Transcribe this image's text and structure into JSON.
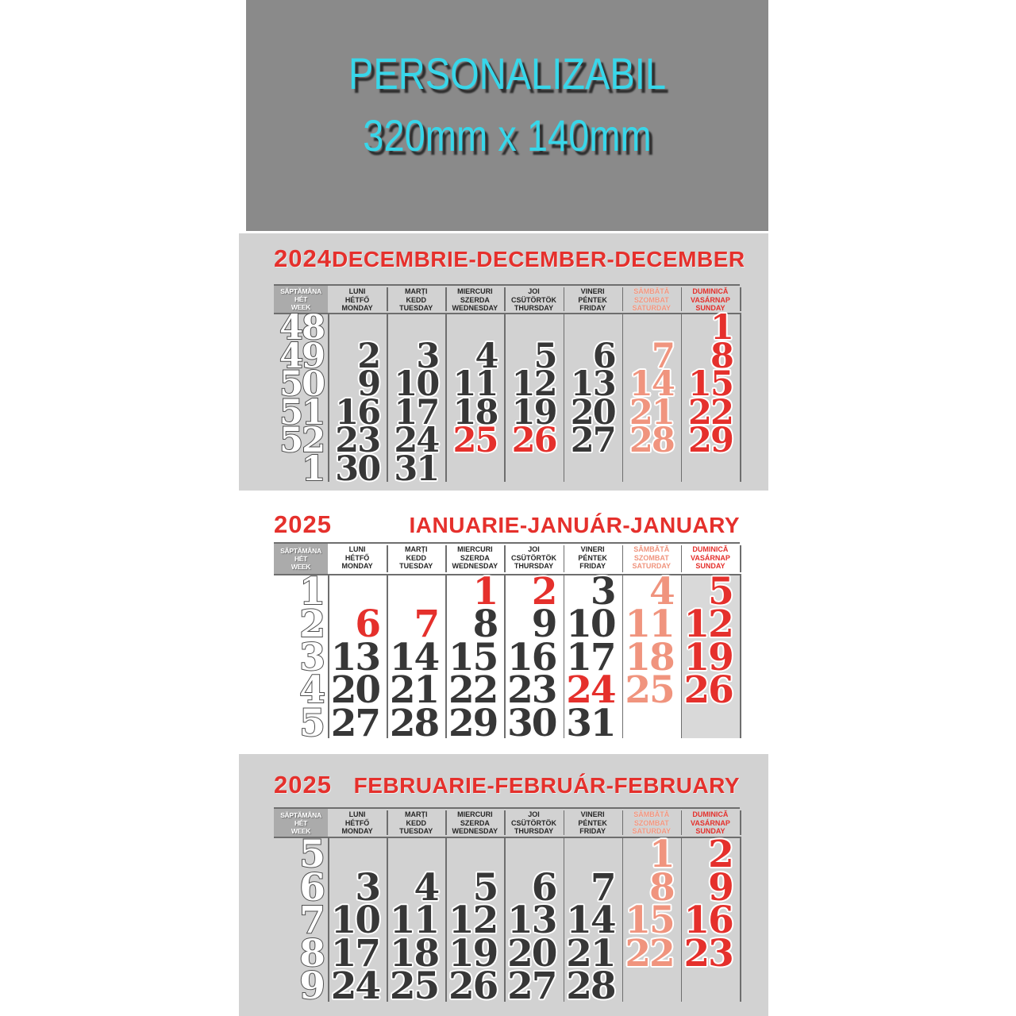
{
  "banner": {
    "title": "PERSONALIZABIL",
    "size": "320mm x 140mm"
  },
  "day_header": {
    "week_lines": [
      "SĂPTĂMÂNA",
      "HÉT",
      "WEEK"
    ],
    "days": [
      {
        "key": "monday",
        "lines": [
          "LUNI",
          "HÉTFŐ",
          "MONDAY"
        ],
        "type": "wd"
      },
      {
        "key": "tuesday",
        "lines": [
          "MARȚI",
          "KEDD",
          "TUESDAY"
        ],
        "type": "wd"
      },
      {
        "key": "wednesday",
        "lines": [
          "MIERCURI",
          "SZERDA",
          "WEDNESDAY"
        ],
        "type": "wd"
      },
      {
        "key": "thursday",
        "lines": [
          "JOI",
          "CSÜTÖRTÖK",
          "THURSDAY"
        ],
        "type": "wd"
      },
      {
        "key": "friday",
        "lines": [
          "VINERI",
          "PÉNTEK",
          "FRIDAY"
        ],
        "type": "wd"
      },
      {
        "key": "saturday",
        "lines": [
          "SÂMBĂTĂ",
          "SZOMBAT",
          "SATURDAY"
        ],
        "type": "sat"
      },
      {
        "key": "sunday",
        "lines": [
          "DUMINICĂ",
          "VASÁRNAP",
          "SUNDAY"
        ],
        "type": "sun"
      }
    ]
  },
  "months": [
    {
      "id": "december-2024",
      "year": "2024",
      "title": "DECEMBRIE-DECEMBER-DECEMBER",
      "sunday_column_shaded": false,
      "weeks": [
        {
          "num": "48",
          "days": [
            null,
            null,
            null,
            null,
            null,
            null,
            {
              "d": "1",
              "t": "sun"
            }
          ]
        },
        {
          "num": "49",
          "days": [
            {
              "d": "2",
              "t": "wd"
            },
            {
              "d": "3",
              "t": "wd"
            },
            {
              "d": "4",
              "t": "wd"
            },
            {
              "d": "5",
              "t": "wd"
            },
            {
              "d": "6",
              "t": "wd"
            },
            {
              "d": "7",
              "t": "sat"
            },
            {
              "d": "8",
              "t": "sun"
            }
          ]
        },
        {
          "num": "50",
          "days": [
            {
              "d": "9",
              "t": "wd"
            },
            {
              "d": "10",
              "t": "wd"
            },
            {
              "d": "11",
              "t": "wd"
            },
            {
              "d": "12",
              "t": "wd"
            },
            {
              "d": "13",
              "t": "wd"
            },
            {
              "d": "14",
              "t": "sat"
            },
            {
              "d": "15",
              "t": "sun"
            }
          ]
        },
        {
          "num": "51",
          "days": [
            {
              "d": "16",
              "t": "wd"
            },
            {
              "d": "17",
              "t": "wd"
            },
            {
              "d": "18",
              "t": "wd"
            },
            {
              "d": "19",
              "t": "wd"
            },
            {
              "d": "20",
              "t": "wd"
            },
            {
              "d": "21",
              "t": "sat"
            },
            {
              "d": "22",
              "t": "sun"
            }
          ]
        },
        {
          "num": "52",
          "days": [
            {
              "d": "23",
              "t": "wd"
            },
            {
              "d": "24",
              "t": "wd"
            },
            {
              "d": "25",
              "t": "hol"
            },
            {
              "d": "26",
              "t": "hol"
            },
            {
              "d": "27",
              "t": "wd"
            },
            {
              "d": "28",
              "t": "sat"
            },
            {
              "d": "29",
              "t": "sun"
            }
          ]
        },
        {
          "num": "1",
          "days": [
            {
              "d": "30",
              "t": "wd"
            },
            {
              "d": "31",
              "t": "wd"
            },
            null,
            null,
            null,
            null,
            null
          ]
        }
      ]
    },
    {
      "id": "january-2025",
      "year": "2025",
      "title": "IANUARIE-JANUÁR-JANUARY",
      "sunday_column_shaded": true,
      "weeks": [
        {
          "num": "1",
          "days": [
            null,
            null,
            {
              "d": "1",
              "t": "hol"
            },
            {
              "d": "2",
              "t": "hol"
            },
            {
              "d": "3",
              "t": "wd"
            },
            {
              "d": "4",
              "t": "sat"
            },
            {
              "d": "5",
              "t": "sun"
            }
          ]
        },
        {
          "num": "2",
          "days": [
            {
              "d": "6",
              "t": "hol"
            },
            {
              "d": "7",
              "t": "hol"
            },
            {
              "d": "8",
              "t": "wd"
            },
            {
              "d": "9",
              "t": "wd"
            },
            {
              "d": "10",
              "t": "wd"
            },
            {
              "d": "11",
              "t": "sat"
            },
            {
              "d": "12",
              "t": "sun"
            }
          ]
        },
        {
          "num": "3",
          "days": [
            {
              "d": "13",
              "t": "wd"
            },
            {
              "d": "14",
              "t": "wd"
            },
            {
              "d": "15",
              "t": "wd"
            },
            {
              "d": "16",
              "t": "wd"
            },
            {
              "d": "17",
              "t": "wd"
            },
            {
              "d": "18",
              "t": "sat"
            },
            {
              "d": "19",
              "t": "sun"
            }
          ]
        },
        {
          "num": "4",
          "days": [
            {
              "d": "20",
              "t": "wd"
            },
            {
              "d": "21",
              "t": "wd"
            },
            {
              "d": "22",
              "t": "wd"
            },
            {
              "d": "23",
              "t": "wd"
            },
            {
              "d": "24",
              "t": "hol"
            },
            {
              "d": "25",
              "t": "sat"
            },
            {
              "d": "26",
              "t": "sun"
            }
          ]
        },
        {
          "num": "5",
          "days": [
            {
              "d": "27",
              "t": "wd"
            },
            {
              "d": "28",
              "t": "wd"
            },
            {
              "d": "29",
              "t": "wd"
            },
            {
              "d": "30",
              "t": "wd"
            },
            {
              "d": "31",
              "t": "wd"
            },
            null,
            null
          ]
        }
      ]
    },
    {
      "id": "february-2025",
      "year": "2025",
      "title": "FEBRUARIE-FEBRUÁR-FEBRUARY",
      "sunday_column_shaded": false,
      "weeks": [
        {
          "num": "5",
          "days": [
            null,
            null,
            null,
            null,
            null,
            {
              "d": "1",
              "t": "sat"
            },
            {
              "d": "2",
              "t": "sun"
            }
          ]
        },
        {
          "num": "6",
          "days": [
            {
              "d": "3",
              "t": "wd"
            },
            {
              "d": "4",
              "t": "wd"
            },
            {
              "d": "5",
              "t": "wd"
            },
            {
              "d": "6",
              "t": "wd"
            },
            {
              "d": "7",
              "t": "wd"
            },
            {
              "d": "8",
              "t": "sat"
            },
            {
              "d": "9",
              "t": "sun"
            }
          ]
        },
        {
          "num": "7",
          "days": [
            {
              "d": "10",
              "t": "wd"
            },
            {
              "d": "11",
              "t": "wd"
            },
            {
              "d": "12",
              "t": "wd"
            },
            {
              "d": "13",
              "t": "wd"
            },
            {
              "d": "14",
              "t": "wd"
            },
            {
              "d": "15",
              "t": "sat"
            },
            {
              "d": "16",
              "t": "sun"
            }
          ]
        },
        {
          "num": "8",
          "days": [
            {
              "d": "17",
              "t": "wd"
            },
            {
              "d": "18",
              "t": "wd"
            },
            {
              "d": "19",
              "t": "wd"
            },
            {
              "d": "20",
              "t": "wd"
            },
            {
              "d": "21",
              "t": "wd"
            },
            {
              "d": "22",
              "t": "sat"
            },
            {
              "d": "23",
              "t": "sun"
            }
          ]
        },
        {
          "num": "9",
          "days": [
            {
              "d": "24",
              "t": "wd"
            },
            {
              "d": "25",
              "t": "wd"
            },
            {
              "d": "26",
              "t": "wd"
            },
            {
              "d": "27",
              "t": "wd"
            },
            {
              "d": "28",
              "t": "wd"
            },
            null,
            null
          ]
        }
      ]
    }
  ],
  "colors": {
    "page_bg": "#ffffff",
    "banner_bg": "#8a8a8a",
    "banner_text": "#38d6e9",
    "banner_shadow": "#2e2e2e",
    "panel_bg": "#d2d2d2",
    "sunday_shade": "#d9d9d9",
    "red": "#e5302c",
    "salmon": "#f0947e",
    "weekday_dark": "#373737",
    "header_text": "#262626",
    "week_cell_bg": "#ababab",
    "week_cell_text": "#ffffff",
    "week_number_outline": "#4f4f4f",
    "divider": "#6e6e6e"
  }
}
